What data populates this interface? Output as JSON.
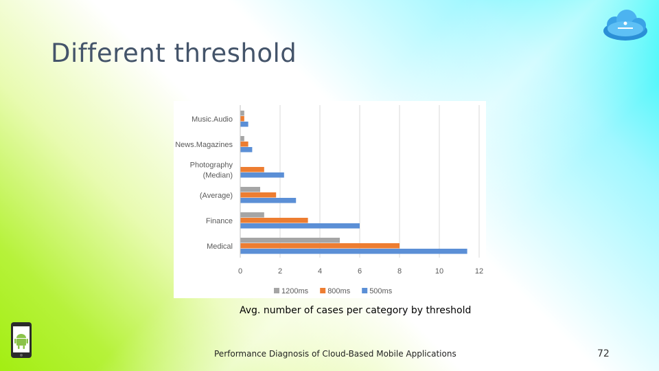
{
  "slide": {
    "title": "Different threshold",
    "caption": "Avg. number of cases per category by threshold",
    "footer": "Performance Diagnosis of Cloud-Based Mobile Applications",
    "page_number": "72",
    "logo_icon": "cloud-logo-icon",
    "phone_icon": "android-phone-icon"
  },
  "chart_data": {
    "type": "bar",
    "orientation": "horizontal",
    "categories": [
      "Music.Audio",
      "News.Magazines",
      "Photography\n(Median)",
      "(Average)",
      "Finance",
      "Medical"
    ],
    "series": [
      {
        "name": "1200ms",
        "color": "#a5a5a5",
        "values": [
          0.2,
          0.2,
          0,
          1.0,
          1.2,
          5.0
        ]
      },
      {
        "name": "800ms",
        "color": "#ed7d31",
        "values": [
          0.2,
          0.4,
          1.2,
          1.8,
          3.4,
          8.0
        ]
      },
      {
        "name": "500ms",
        "color": "#5b8fd6",
        "values": [
          0.4,
          0.6,
          2.2,
          2.8,
          6.0,
          11.4
        ]
      }
    ],
    "x_ticks": [
      "0",
      "2",
      "4",
      "6",
      "8",
      "10",
      "12"
    ],
    "xlim": [
      0,
      12
    ],
    "grid": true,
    "legend": "bottom"
  }
}
